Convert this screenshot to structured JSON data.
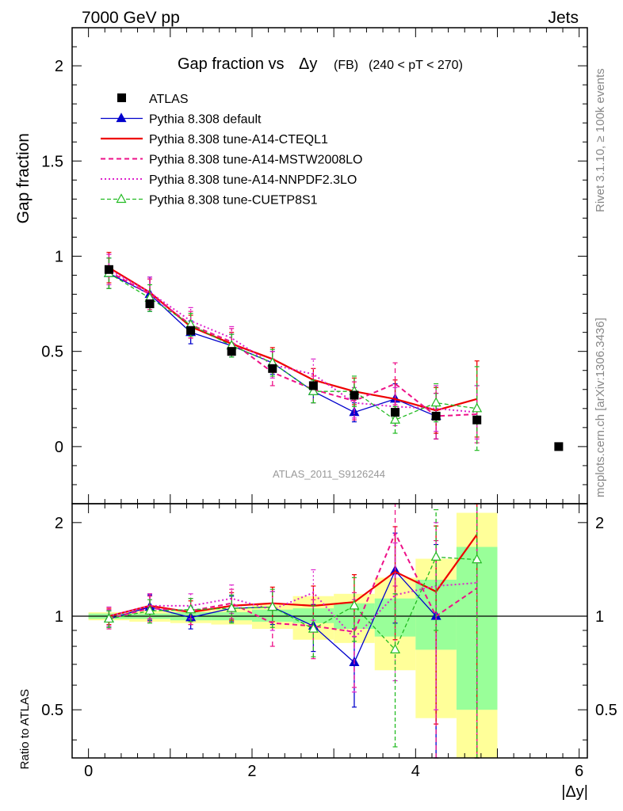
{
  "header": {
    "left": "7000 GeV pp",
    "right": "Jets"
  },
  "side_labels": {
    "rivet": "Rivet 3.1.10, ≥ 100k events",
    "mcplots": "mcplots.cern.ch [arXiv:1306.3436]"
  },
  "analysis_id": "ATLAS_2011_S9126244",
  "colors": {
    "atlas": "#000000",
    "default": "#0000cc",
    "cteql1": "#ee0000",
    "mstw": "#ee1188",
    "nnpdf": "#dd22cc",
    "cuetp8s1": "#22bb22",
    "band_yellow": "#ffff99",
    "band_green": "#99ff99"
  },
  "chart_data": [
    {
      "type": "line",
      "title_main": "Gap fraction vs",
      "title_delta": "Δy",
      "title_fb": "(FB)",
      "title_range": "(240 < pT < 270)",
      "ylabel": "Gap fraction",
      "xlim": [
        -0.2,
        6.1
      ],
      "ylim": [
        -0.3,
        2.2
      ],
      "yticks": [
        "0",
        "0.5",
        "1",
        "1.5",
        "2"
      ],
      "x": [
        0.25,
        0.75,
        1.25,
        1.75,
        2.25,
        2.75,
        3.25,
        3.75,
        4.25,
        4.75
      ],
      "legend": [
        {
          "key": "atlas",
          "label": "ATLAS"
        },
        {
          "key": "default",
          "label": "Pythia 8.308 default"
        },
        {
          "key": "cteql1",
          "label": "Pythia 8.308 tune-A14-CTEQL1"
        },
        {
          "key": "mstw",
          "label": "Pythia 8.308 tune-A14-MSTW2008LO"
        },
        {
          "key": "nnpdf",
          "label": "Pythia 8.308 tune-A14-NNPDF2.3LO"
        },
        {
          "key": "cuetp8s1",
          "label": "Pythia 8.308 tune-CUETP8S1"
        }
      ],
      "data_points": {
        "x": [
          0.25,
          0.75,
          1.25,
          1.75,
          2.25,
          2.75,
          3.25,
          3.75,
          4.25,
          4.75,
          5.75
        ],
        "y": [
          0.93,
          0.75,
          0.61,
          0.5,
          0.41,
          0.32,
          0.27,
          0.18,
          0.16,
          0.14,
          0.0
        ]
      },
      "series": [
        {
          "key": "default",
          "values": [
            0.91,
            0.8,
            0.6,
            0.53,
            0.44,
            0.29,
            0.18,
            0.25,
            0.16,
            null
          ],
          "err": [
            0.08,
            0.09,
            0.06,
            0.06,
            0.06,
            0.06,
            0.05,
            0.08,
            0.12,
            null
          ]
        },
        {
          "key": "cteql1",
          "values": [
            0.94,
            0.81,
            0.63,
            0.54,
            0.46,
            0.35,
            0.29,
            0.25,
            0.19,
            0.25
          ],
          "err": [
            0.08,
            0.07,
            0.06,
            0.06,
            0.06,
            0.06,
            0.07,
            0.1,
            0.12,
            0.2
          ]
        },
        {
          "key": "mstw",
          "values": [
            0.92,
            0.8,
            0.64,
            0.55,
            0.39,
            0.3,
            0.24,
            0.33,
            0.16,
            0.17
          ],
          "err": [
            0.09,
            0.08,
            0.07,
            0.07,
            0.07,
            0.07,
            0.1,
            0.11,
            0.12,
            0.15
          ]
        },
        {
          "key": "nnpdf",
          "values": [
            0.93,
            0.81,
            0.66,
            0.57,
            0.43,
            0.38,
            0.23,
            0.21,
            0.2,
            0.18
          ],
          "err": [
            0.08,
            0.08,
            0.07,
            0.06,
            0.07,
            0.08,
            0.08,
            0.1,
            0.12,
            0.14
          ]
        },
        {
          "key": "cuetp8s1",
          "values": [
            0.91,
            0.78,
            0.64,
            0.53,
            0.44,
            0.29,
            0.29,
            0.14,
            0.23,
            0.2
          ],
          "err": [
            0.08,
            0.07,
            0.06,
            0.06,
            0.07,
            0.06,
            0.08,
            0.07,
            0.1,
            0.22
          ]
        }
      ]
    },
    {
      "type": "line",
      "ylabel": "Ratio to ATLAS",
      "xlabel": "|Δy|",
      "xlim": [
        -0.2,
        6.1
      ],
      "ylim": [
        0.35,
        2.3
      ],
      "yticks": [
        "0.5",
        "1",
        "2"
      ],
      "xticks": [
        "0",
        "2",
        "4",
        "6"
      ],
      "bins": [
        [
          0,
          0.5
        ],
        [
          0.5,
          1
        ],
        [
          1,
          1.5
        ],
        [
          1.5,
          2
        ],
        [
          2,
          2.5
        ],
        [
          2.5,
          3
        ],
        [
          3,
          3.5
        ],
        [
          3.5,
          4
        ],
        [
          4,
          4.5
        ],
        [
          4.5,
          5
        ]
      ],
      "band_yellow": [
        [
          0.97,
          1.03
        ],
        [
          0.96,
          1.04
        ],
        [
          0.95,
          1.05
        ],
        [
          0.94,
          1.06
        ],
        [
          0.91,
          1.09
        ],
        [
          0.84,
          1.16
        ],
        [
          0.82,
          1.18
        ],
        [
          0.67,
          1.33
        ],
        [
          0.47,
          1.53
        ],
        [
          0.3,
          2.15
        ]
      ],
      "band_green": [
        [
          0.98,
          1.02
        ],
        [
          0.98,
          1.02
        ],
        [
          0.97,
          1.03
        ],
        [
          0.97,
          1.03
        ],
        [
          0.96,
          1.05
        ],
        [
          0.95,
          1.06
        ],
        [
          0.91,
          1.1
        ],
        [
          0.86,
          1.14
        ],
        [
          0.78,
          1.31
        ],
        [
          0.5,
          1.67
        ]
      ],
      "x": [
        0.25,
        0.75,
        1.25,
        1.75,
        2.25,
        2.75,
        3.25,
        3.75,
        4.25,
        4.75
      ],
      "series": [
        {
          "key": "default",
          "values": [
            0.98,
            1.07,
            0.99,
            1.06,
            1.07,
            0.93,
            0.71,
            1.4,
            1.0,
            null
          ],
          "err": [
            0.06,
            0.1,
            0.08,
            0.1,
            0.13,
            0.16,
            0.2,
            0.45,
            0.7,
            null
          ]
        },
        {
          "key": "cteql1",
          "values": [
            1.0,
            1.08,
            1.03,
            1.08,
            1.1,
            1.08,
            1.11,
            1.39,
            1.2,
            1.83
          ],
          "err": [
            0.06,
            0.1,
            0.09,
            0.11,
            0.14,
            0.17,
            0.25,
            0.55,
            0.75,
            1.5
          ]
        },
        {
          "key": "mstw",
          "values": [
            0.98,
            1.06,
            1.04,
            1.1,
            0.95,
            0.93,
            0.89,
            1.85,
            1.0,
            1.23
          ],
          "err": [
            0.07,
            0.1,
            0.1,
            0.12,
            0.15,
            0.2,
            0.3,
            0.6,
            0.75,
            1.2
          ]
        },
        {
          "key": "nnpdf",
          "values": [
            1.0,
            1.08,
            1.08,
            1.14,
            1.05,
            1.19,
            0.85,
            1.17,
            1.25,
            1.28
          ],
          "err": [
            0.07,
            0.1,
            0.1,
            0.12,
            0.15,
            0.22,
            0.28,
            0.55,
            0.75,
            1.1
          ]
        },
        {
          "key": "cuetp8s1",
          "values": [
            0.98,
            1.04,
            1.05,
            1.06,
            1.07,
            0.91,
            1.08,
            0.78,
            1.55,
            1.52
          ],
          "err": [
            0.06,
            0.09,
            0.09,
            0.11,
            0.15,
            0.17,
            0.25,
            0.4,
            0.65,
            1.4
          ]
        }
      ]
    }
  ]
}
